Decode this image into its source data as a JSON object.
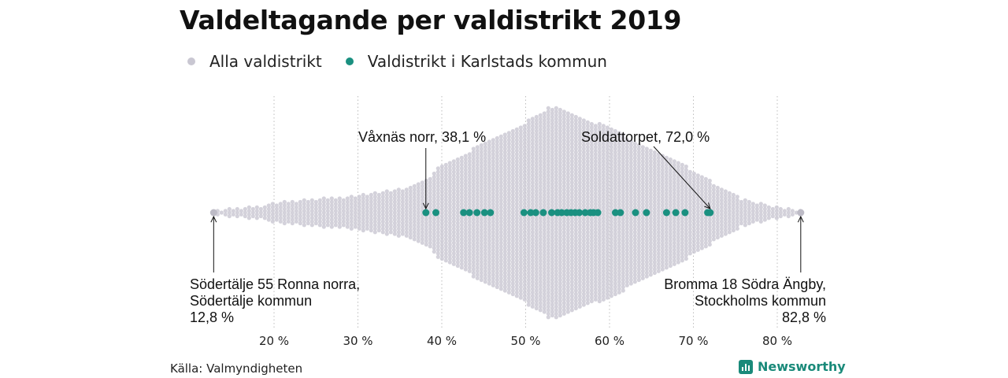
{
  "title": "Valdeltagande per valdistrikt 2019",
  "legend": [
    {
      "label": "Alla valdistrikt",
      "color": "#c9c7d2"
    },
    {
      "label": "Valdistrikt i Karlstads kommun",
      "color": "#1a9080"
    }
  ],
  "source": "Källa: Valmyndigheten",
  "brand": "Newsworthy",
  "chart_data": {
    "type": "scatter",
    "subtype": "beeswarm",
    "x_unit": "%",
    "xlim": [
      12,
      84
    ],
    "x_ticks": [
      20,
      30,
      40,
      50,
      60,
      70,
      80
    ],
    "x_tick_labels": [
      "20 %",
      "30 %",
      "40 %",
      "50 %",
      "60 %",
      "70 %",
      "80 %"
    ],
    "grid": "vertical dotted",
    "series": [
      {
        "name": "Alla valdistrikt",
        "color": "#c9c7d2",
        "distribution_note": "Shape of dense swarm of all districts, extent by turnout",
        "density_profile": [
          [
            12.8,
            0.02
          ],
          [
            15,
            0.04
          ],
          [
            18,
            0.06
          ],
          [
            20,
            0.09
          ],
          [
            25,
            0.13
          ],
          [
            30,
            0.16
          ],
          [
            35,
            0.22
          ],
          [
            38,
            0.3
          ],
          [
            40,
            0.45
          ],
          [
            45,
            0.65
          ],
          [
            50,
            0.85
          ],
          [
            53,
            1.0
          ],
          [
            55,
            0.95
          ],
          [
            60,
            0.8
          ],
          [
            65,
            0.6
          ],
          [
            70,
            0.4
          ],
          [
            73,
            0.25
          ],
          [
            76,
            0.12
          ],
          [
            80,
            0.05
          ],
          [
            82.8,
            0.02
          ]
        ]
      },
      {
        "name": "Valdistrikt i Karlstads kommun",
        "color": "#1a9080",
        "values": [
          38.1,
          39.3,
          42.6,
          43.3,
          44.2,
          45.1,
          45.8,
          49.8,
          50.6,
          51.2,
          52.1,
          53.1,
          53.8,
          54.3,
          54.9,
          55.4,
          55.9,
          56.4,
          57.1,
          57.7,
          58.1,
          58.6,
          60.7,
          61.3,
          63.1,
          64.4,
          66.8,
          67.9,
          69.0,
          71.7,
          72.0
        ]
      }
    ],
    "annotations": [
      {
        "label_lines": [
          "Våxnäs norr, 38,1 %"
        ],
        "x": 38.1
      },
      {
        "label_lines": [
          "Soldattorpet, 72,0 %"
        ],
        "x": 72.0
      },
      {
        "label_lines": [
          "Södertälje 55 Ronna norra,",
          "Södertälje kommun",
          "12,8 %"
        ],
        "x": 12.8
      },
      {
        "label_lines": [
          "Bromma 18 Södra Ängby,",
          "Stockholms kommun",
          "82,8 %"
        ],
        "x": 82.8
      }
    ]
  }
}
